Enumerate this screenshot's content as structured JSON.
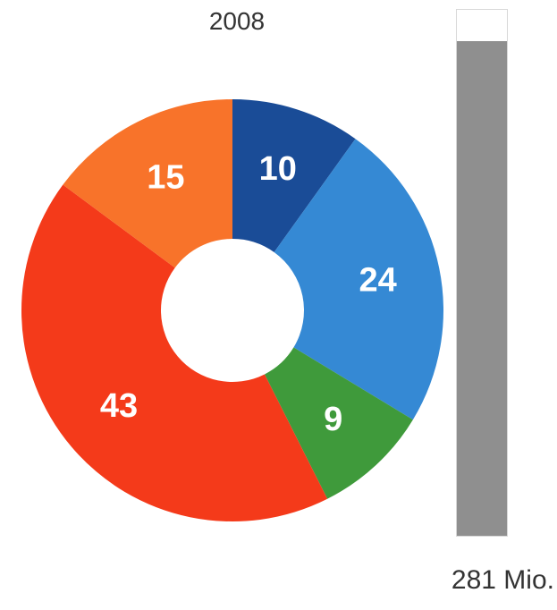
{
  "chart_data": [
    {
      "type": "pie",
      "variant": "donut",
      "title": "2008",
      "slices": [
        {
          "value": 10,
          "label": "10",
          "color": "#1a4c97"
        },
        {
          "value": 24,
          "label": "24",
          "color": "#3589d4"
        },
        {
          "value": 9,
          "label": "9",
          "color": "#3f9a3b"
        },
        {
          "value": 43,
          "label": "43",
          "color": "#f43a1a"
        },
        {
          "value": 15,
          "label": "15",
          "color": "#f8732a"
        }
      ]
    },
    {
      "type": "bar",
      "orientation": "vertical",
      "fill_fraction": 0.94,
      "color": "#8f8f8f",
      "label": "281 Mio."
    }
  ]
}
